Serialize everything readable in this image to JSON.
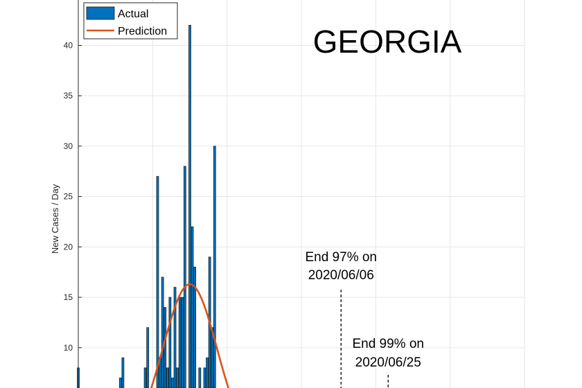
{
  "chart_data": {
    "type": "bar",
    "title": "GEORGIA",
    "ylabel": "New Cases / Day",
    "xlabel": "",
    "ylim": [
      6,
      44.5
    ],
    "xlim": [
      0,
      180
    ],
    "yticks": [
      10,
      15,
      20,
      25,
      30,
      35,
      40
    ],
    "grid": true,
    "legend": {
      "placement": "top-left",
      "entries": [
        "Actual",
        "Prediction"
      ]
    },
    "series": [
      {
        "name": "Actual",
        "kind": "bar",
        "color": "#0072BD",
        "x": [
          0,
          12,
          15,
          17,
          18,
          20,
          27,
          28,
          31,
          32,
          33,
          34,
          35,
          36,
          37,
          38,
          39,
          40,
          41,
          42,
          43,
          44,
          45,
          46,
          47,
          48,
          49,
          50,
          51,
          52,
          53,
          54,
          55,
          56,
          57
        ],
        "values": [
          8,
          6,
          6,
          7,
          9,
          6,
          8,
          12,
          6,
          27,
          9,
          17,
          14,
          8,
          15,
          7,
          16,
          8,
          15,
          15,
          28,
          6,
          42,
          22,
          18,
          6,
          8,
          6,
          8,
          9,
          19,
          12,
          30,
          6,
          6
        ]
      },
      {
        "name": "Prediction",
        "kind": "line",
        "color": "#D95319",
        "peak_day": 45,
        "peak_value": 16.3,
        "spread_days": 11
      }
    ],
    "annotations": [
      {
        "line1": "End 97% on",
        "line2": "2020/06/06",
        "x": 106
      },
      {
        "line1": "End 99% on",
        "line2": "2020/06/25",
        "x": 125
      }
    ]
  }
}
